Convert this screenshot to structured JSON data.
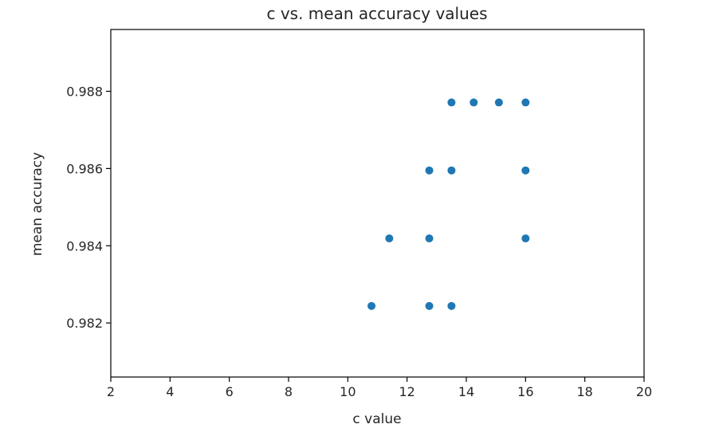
{
  "chart_data": {
    "type": "scatter",
    "title": "c vs. mean accuracy values",
    "xlabel": "c value",
    "ylabel": "mean accuracy",
    "xlim": [
      2,
      20
    ],
    "ylim": [
      0.9806,
      0.9896
    ],
    "xticks": [
      "2",
      "4",
      "6",
      "8",
      "10",
      "12",
      "14",
      "16",
      "18",
      "20"
    ],
    "yticks": [
      "0.982",
      "0.984",
      "0.986",
      "0.988"
    ],
    "grid": false,
    "marker_color": "#1f77b4",
    "points": [
      {
        "x": 10.8,
        "y": 0.98244
      },
      {
        "x": 12.75,
        "y": 0.98244
      },
      {
        "x": 13.5,
        "y": 0.98244
      },
      {
        "x": 11.4,
        "y": 0.98419
      },
      {
        "x": 12.75,
        "y": 0.98419
      },
      {
        "x": 16.0,
        "y": 0.98419
      },
      {
        "x": 12.75,
        "y": 0.98595
      },
      {
        "x": 13.5,
        "y": 0.98595
      },
      {
        "x": 16.0,
        "y": 0.98595
      },
      {
        "x": 13.5,
        "y": 0.98771
      },
      {
        "x": 14.25,
        "y": 0.98771
      },
      {
        "x": 15.1,
        "y": 0.98771
      },
      {
        "x": 16.0,
        "y": 0.98771
      }
    ]
  }
}
